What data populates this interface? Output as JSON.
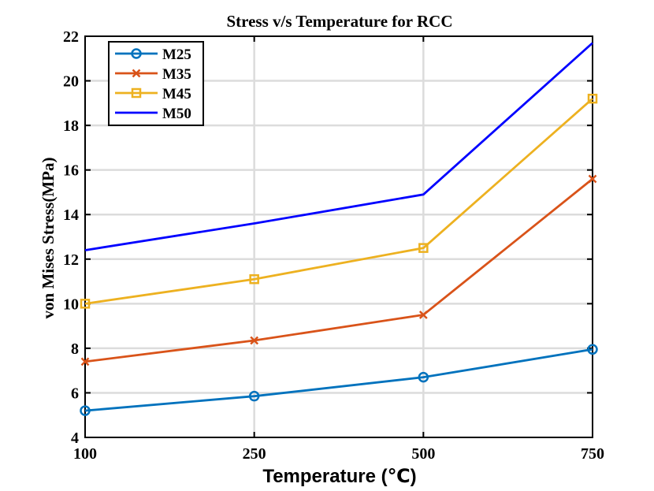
{
  "chart_data": {
    "type": "line",
    "title": "Stress v/s Temperature for RCC",
    "xlabel": "Temperature (℃)",
    "ylabel": "von Mises Stress(MPa)",
    "categories": [
      "100",
      "250",
      "500",
      "750"
    ],
    "ylim": [
      4,
      22
    ],
    "yticks": [
      "4",
      "6",
      "8",
      "10",
      "12",
      "14",
      "16",
      "18",
      "20",
      "22"
    ],
    "grid": true,
    "legend_position": "top-left",
    "series": [
      {
        "name": "M25",
        "values": [
          5.2,
          5.85,
          6.7,
          7.95
        ],
        "color": "#0072BD",
        "marker": "circle"
      },
      {
        "name": "M35",
        "values": [
          7.4,
          8.35,
          9.5,
          15.6
        ],
        "color": "#D95319",
        "marker": "x"
      },
      {
        "name": "M45",
        "values": [
          10.0,
          11.1,
          12.5,
          19.2
        ],
        "color": "#EDB120",
        "marker": "square"
      },
      {
        "name": "M50",
        "values": [
          12.4,
          13.6,
          14.9,
          21.7
        ],
        "color": "#0000FF",
        "marker": "none"
      }
    ]
  }
}
